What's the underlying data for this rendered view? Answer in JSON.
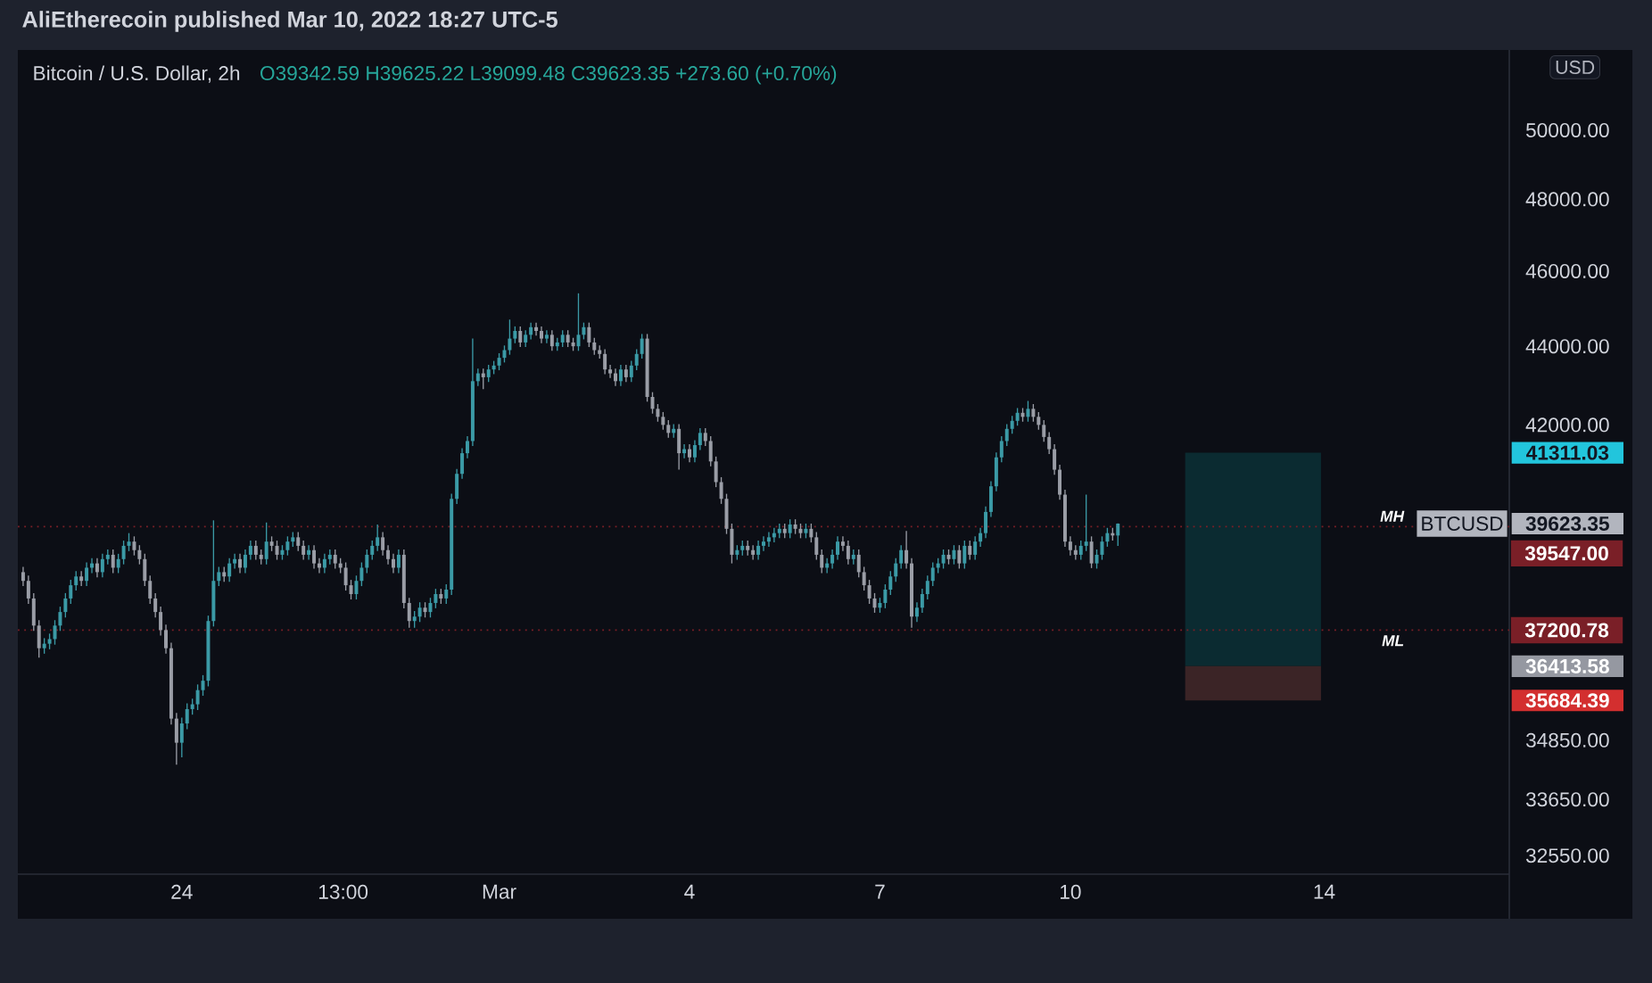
{
  "chart_data": {
    "type": "candlestick",
    "title": "Bitcoin / U.S. Dollar, 2h",
    "subtitle": "O39342.59 H39625.22 L39099.48 C39623.35 +273.60 (+0.70%)",
    "log": "y",
    "xlim": [
      "2022-02-21T10:00",
      "2022-03-16T22:00"
    ],
    "xticks": [
      {
        "value": "2022-02-24",
        "label": "24"
      },
      {
        "value": "2022-02-26T13:00",
        "label": "13:00"
      },
      {
        "value": "2022-03-01",
        "label": "Mar"
      },
      {
        "value": "2022-03-04",
        "label": "4"
      },
      {
        "value": "2022-03-07",
        "label": "7"
      },
      {
        "value": "2022-03-10",
        "label": "10"
      },
      {
        "value": "2022-03-14",
        "label": "14"
      }
    ],
    "ylim": [
      32200,
      52330
    ],
    "yticks": [
      {
        "value": 50000,
        "label": "50000.00"
      },
      {
        "value": 48000,
        "label": "48000.00"
      },
      {
        "value": 46000,
        "label": "46000.00"
      },
      {
        "value": 44000,
        "label": "44000.00"
      },
      {
        "value": 42000,
        "label": "42000.00"
      },
      41311.03,
      39623.35,
      36413.58,
      35684.39,
      {
        "value": 34850,
        "label": "34850.00"
      },
      {
        "value": 33650,
        "label": "33650.00"
      },
      {
        "value": 32550,
        "label": "32550.00"
      }
    ],
    "ref_lines": [
      {
        "axis": "y",
        "value": 39547,
        "label": "39547.00",
        "color": "#7a1f27",
        "line_style": "dotted"
      },
      {
        "axis": "y",
        "value": 37200.78,
        "label": "37200.78",
        "color": "#7a1f27",
        "line_style": "dotted"
      }
    ],
    "bands": [
      {
        "axis": "y",
        "from": 36413.58,
        "to": 41311.03,
        "color": "#0b2b31"
      },
      {
        "axis": "y",
        "from": 35684.39,
        "to": 36413.58,
        "color": "#3b2426"
      }
    ],
    "annotations": [
      "AliEtherecoin published Mar 10, 2022 18:27 UTC-5",
      "USD",
      "BTCUSD",
      "MH",
      "ML"
    ],
    "x": [
      "2022-02-21T12:00",
      "2022-02-21T14:00",
      "2022-02-21T16:00",
      "2022-02-21T18:00",
      "2022-02-21T20:00",
      "2022-02-21T22:00",
      "2022-02-22T00:00",
      "2022-02-22T02:00",
      "2022-02-22T04:00",
      "2022-02-22T06:00",
      "2022-02-22T08:00",
      "2022-02-22T10:00",
      "2022-02-22T12:00",
      "2022-02-22T14:00",
      "2022-02-22T16:00",
      "2022-02-22T18:00",
      "2022-02-22T20:00",
      "2022-02-22T22:00",
      "2022-02-23T00:00",
      "2022-02-23T02:00",
      "2022-02-23T04:00",
      "2022-02-23T06:00",
      "2022-02-23T08:00",
      "2022-02-23T10:00",
      "2022-02-23T12:00",
      "2022-02-23T14:00",
      "2022-02-23T16:00",
      "2022-02-23T18:00",
      "2022-02-23T20:00",
      "2022-02-23T22:00",
      "2022-02-24T00:00",
      "2022-02-24T02:00",
      "2022-02-24T04:00",
      "2022-02-24T06:00",
      "2022-02-24T08:00",
      "2022-02-24T10:00",
      "2022-02-24T12:00",
      "2022-02-24T14:00",
      "2022-02-24T16:00",
      "2022-02-24T18:00",
      "2022-02-24T20:00",
      "2022-02-24T22:00",
      "2022-02-25T00:00",
      "2022-02-25T02:00",
      "2022-02-25T04:00",
      "2022-02-25T06:00",
      "2022-02-25T08:00",
      "2022-02-25T10:00",
      "2022-02-25T12:00",
      "2022-02-25T14:00",
      "2022-02-25T16:00",
      "2022-02-25T18:00",
      "2022-02-25T20:00",
      "2022-02-25T22:00",
      "2022-02-26T00:00",
      "2022-02-26T02:00",
      "2022-02-26T04:00",
      "2022-02-26T06:00",
      "2022-02-26T08:00",
      "2022-02-26T10:00",
      "2022-02-26T12:00",
      "2022-02-26T14:00",
      "2022-02-26T16:00",
      "2022-02-26T18:00",
      "2022-02-26T20:00",
      "2022-02-26T22:00",
      "2022-02-27T00:00",
      "2022-02-27T02:00",
      "2022-02-27T04:00",
      "2022-02-27T06:00",
      "2022-02-27T08:00",
      "2022-02-27T10:00",
      "2022-02-27T12:00",
      "2022-02-27T14:00",
      "2022-02-27T16:00",
      "2022-02-27T18:00",
      "2022-02-27T20:00",
      "2022-02-27T22:00",
      "2022-02-28T00:00",
      "2022-02-28T02:00",
      "2022-02-28T04:00",
      "2022-02-28T06:00",
      "2022-02-28T08:00",
      "2022-02-28T10:00",
      "2022-02-28T12:00",
      "2022-02-28T14:00",
      "2022-02-28T16:00",
      "2022-02-28T18:00",
      "2022-02-28T20:00",
      "2022-02-28T22:00",
      "2022-03-01T00:00",
      "2022-03-01T02:00",
      "2022-03-01T04:00",
      "2022-03-01T06:00",
      "2022-03-01T08:00",
      "2022-03-01T10:00",
      "2022-03-01T12:00",
      "2022-03-01T14:00",
      "2022-03-01T16:00",
      "2022-03-01T18:00",
      "2022-03-01T20:00",
      "2022-03-01T22:00",
      "2022-03-02T00:00",
      "2022-03-02T02:00",
      "2022-03-02T04:00",
      "2022-03-02T06:00",
      "2022-03-02T08:00",
      "2022-03-02T10:00",
      "2022-03-02T12:00",
      "2022-03-02T14:00",
      "2022-03-02T16:00",
      "2022-03-02T18:00",
      "2022-03-02T20:00",
      "2022-03-02T22:00",
      "2022-03-03T00:00",
      "2022-03-03T02:00",
      "2022-03-03T04:00",
      "2022-03-03T06:00",
      "2022-03-03T08:00",
      "2022-03-03T10:00",
      "2022-03-03T12:00",
      "2022-03-03T14:00",
      "2022-03-03T16:00",
      "2022-03-03T18:00",
      "2022-03-03T20:00",
      "2022-03-03T22:00",
      "2022-03-04T00:00",
      "2022-03-04T02:00",
      "2022-03-04T04:00",
      "2022-03-04T06:00",
      "2022-03-04T08:00",
      "2022-03-04T10:00",
      "2022-03-04T12:00",
      "2022-03-04T14:00",
      "2022-03-04T16:00",
      "2022-03-04T18:00",
      "2022-03-04T20:00",
      "2022-03-04T22:00",
      "2022-03-05T00:00",
      "2022-03-05T02:00",
      "2022-03-05T04:00",
      "2022-03-05T06:00",
      "2022-03-05T08:00",
      "2022-03-05T10:00",
      "2022-03-05T12:00",
      "2022-03-05T14:00",
      "2022-03-05T16:00",
      "2022-03-05T18:00",
      "2022-03-05T20:00",
      "2022-03-05T22:00",
      "2022-03-06T00:00",
      "2022-03-06T02:00",
      "2022-03-06T04:00",
      "2022-03-06T06:00",
      "2022-03-06T08:00",
      "2022-03-06T10:00",
      "2022-03-06T12:00",
      "2022-03-06T14:00",
      "2022-03-06T16:00",
      "2022-03-06T18:00",
      "2022-03-06T20:00",
      "2022-03-06T22:00",
      "2022-03-07T00:00",
      "2022-03-07T02:00",
      "2022-03-07T04:00",
      "2022-03-07T06:00",
      "2022-03-07T08:00",
      "2022-03-07T10:00",
      "2022-03-07T12:00",
      "2022-03-07T14:00",
      "2022-03-07T16:00",
      "2022-03-07T18:00",
      "2022-03-07T20:00",
      "2022-03-07T22:00",
      "2022-03-08T00:00",
      "2022-03-08T02:00",
      "2022-03-08T04:00",
      "2022-03-08T06:00",
      "2022-03-08T08:00",
      "2022-03-08T10:00",
      "2022-03-08T12:00",
      "2022-03-08T14:00",
      "2022-03-08T16:00",
      "2022-03-08T18:00",
      "2022-03-08T20:00",
      "2022-03-08T22:00",
      "2022-03-09T00:00",
      "2022-03-09T02:00",
      "2022-03-09T04:00",
      "2022-03-09T06:00",
      "2022-03-09T08:00",
      "2022-03-09T10:00",
      "2022-03-09T12:00",
      "2022-03-09T14:00",
      "2022-03-09T16:00",
      "2022-03-09T18:00",
      "2022-03-09T20:00",
      "2022-03-09T22:00",
      "2022-03-10T00:00",
      "2022-03-10T02:00",
      "2022-03-10T04:00",
      "2022-03-10T06:00",
      "2022-03-10T08:00",
      "2022-03-10T10:00",
      "2022-03-10T12:00",
      "2022-03-10T14:00",
      "2022-03-10T16:00",
      "2022-03-10T18:00"
    ],
    "ohlc": [
      [
        38500,
        38620,
        38180,
        38300
      ],
      [
        38300,
        38420,
        37780,
        37900
      ],
      [
        37900,
        38020,
        37180,
        37300
      ],
      [
        37300,
        37420,
        36600,
        36800
      ],
      [
        36800,
        37020,
        36680,
        36900
      ],
      [
        36900,
        37120,
        36780,
        37000
      ],
      [
        37000,
        37420,
        36880,
        37300
      ],
      [
        37300,
        37720,
        37180,
        37600
      ],
      [
        37600,
        38020,
        37480,
        37900
      ],
      [
        37900,
        38320,
        37780,
        38200
      ],
      [
        38200,
        38520,
        38080,
        38400
      ],
      [
        38400,
        38520,
        38180,
        38300
      ],
      [
        38300,
        38720,
        38180,
        38600
      ],
      [
        38600,
        38820,
        38480,
        38700
      ],
      [
        38700,
        38820,
        38380,
        38500
      ],
      [
        38500,
        38920,
        38380,
        38800
      ],
      [
        38800,
        39020,
        38680,
        38900
      ],
      [
        38900,
        39020,
        38480,
        38600
      ],
      [
        38600,
        38920,
        38480,
        38800
      ],
      [
        38800,
        39220,
        38680,
        39100
      ],
      [
        39100,
        39400,
        38980,
        39200
      ],
      [
        39200,
        39320,
        38880,
        39000
      ],
      [
        39000,
        39120,
        38680,
        38800
      ],
      [
        38800,
        38920,
        38180,
        38300
      ],
      [
        38300,
        38420,
        37780,
        37900
      ],
      [
        37900,
        38020,
        37480,
        37600
      ],
      [
        37600,
        37720,
        37080,
        37200
      ],
      [
        37200,
        37320,
        36680,
        36800
      ],
      [
        36800,
        36920,
        35180,
        35300
      ],
      [
        35300,
        35420,
        34350,
        34800
      ],
      [
        34800,
        35320,
        34500,
        35200
      ],
      [
        35200,
        35620,
        35080,
        35500
      ],
      [
        35500,
        35720,
        35380,
        35600
      ],
      [
        35600,
        36020,
        35480,
        35900
      ],
      [
        35900,
        36220,
        35780,
        36100
      ],
      [
        36100,
        37520,
        35980,
        37400
      ],
      [
        37400,
        39700,
        37280,
        38300
      ],
      [
        38300,
        38620,
        38180,
        38500
      ],
      [
        38500,
        38620,
        38280,
        38400
      ],
      [
        38400,
        38820,
        38280,
        38700
      ],
      [
        38700,
        38920,
        38580,
        38800
      ],
      [
        38800,
        38920,
        38480,
        38600
      ],
      [
        38600,
        39020,
        38480,
        38900
      ],
      [
        38900,
        39220,
        38780,
        39100
      ],
      [
        39100,
        39220,
        38780,
        38900
      ],
      [
        38900,
        39020,
        38680,
        38800
      ],
      [
        38800,
        39650,
        38680,
        39200
      ],
      [
        39200,
        39320,
        38980,
        39100
      ],
      [
        39100,
        39220,
        38780,
        38900
      ],
      [
        38900,
        39120,
        38780,
        39000
      ],
      [
        39000,
        39320,
        38880,
        39200
      ],
      [
        39200,
        39420,
        39080,
        39300
      ],
      [
        39300,
        39420,
        38980,
        39100
      ],
      [
        39100,
        39220,
        38780,
        38900
      ],
      [
        38900,
        39120,
        38780,
        39000
      ],
      [
        39000,
        39120,
        38580,
        38700
      ],
      [
        38700,
        38820,
        38480,
        38600
      ],
      [
        38600,
        38920,
        38480,
        38800
      ],
      [
        38800,
        39020,
        38680,
        38900
      ],
      [
        38900,
        39020,
        38580,
        38700
      ],
      [
        38700,
        38820,
        38480,
        38600
      ],
      [
        38600,
        38720,
        38080,
        38200
      ],
      [
        38200,
        38320,
        37880,
        38000
      ],
      [
        38000,
        38420,
        37880,
        38300
      ],
      [
        38300,
        38720,
        38180,
        38600
      ],
      [
        38600,
        39020,
        38480,
        38900
      ],
      [
        38900,
        39220,
        38780,
        39100
      ],
      [
        39100,
        39600,
        38980,
        39300
      ],
      [
        39300,
        39420,
        38880,
        39000
      ],
      [
        39000,
        39120,
        38680,
        38800
      ],
      [
        38800,
        38920,
        38480,
        38600
      ],
      [
        38600,
        39020,
        38480,
        38900
      ],
      [
        38900,
        39020,
        37680,
        37800
      ],
      [
        37800,
        37920,
        37250,
        37400
      ],
      [
        37400,
        37620,
        37250,
        37500
      ],
      [
        37500,
        37820,
        37380,
        37700
      ],
      [
        37700,
        37820,
        37480,
        37600
      ],
      [
        37600,
        37920,
        37480,
        37800
      ],
      [
        37800,
        38120,
        37680,
        38000
      ],
      [
        38000,
        38120,
        37780,
        37900
      ],
      [
        37900,
        38220,
        37780,
        38100
      ],
      [
        38100,
        40320,
        37980,
        40200
      ],
      [
        40200,
        40920,
        40080,
        40800
      ],
      [
        40800,
        41420,
        40680,
        41300
      ],
      [
        41300,
        41720,
        41180,
        41600
      ],
      [
        41600,
        44200,
        41480,
        43100
      ],
      [
        43100,
        43420,
        42980,
        43300
      ],
      [
        43300,
        43420,
        42900,
        43200
      ],
      [
        43200,
        43520,
        43080,
        43400
      ],
      [
        43400,
        43620,
        43280,
        43500
      ],
      [
        43500,
        43820,
        43380,
        43700
      ],
      [
        43700,
        44020,
        43580,
        43900
      ],
      [
        43900,
        44700,
        43780,
        44200
      ],
      [
        44200,
        44520,
        44080,
        44400
      ],
      [
        44400,
        44520,
        43980,
        44100
      ],
      [
        44100,
        44420,
        43980,
        44300
      ],
      [
        44300,
        44620,
        44180,
        44500
      ],
      [
        44500,
        44620,
        44280,
        44400
      ],
      [
        44400,
        44520,
        44080,
        44200
      ],
      [
        44200,
        44420,
        44080,
        44300
      ],
      [
        44300,
        44420,
        43880,
        44000
      ],
      [
        44000,
        44220,
        43880,
        44100
      ],
      [
        44100,
        44420,
        43980,
        44300
      ],
      [
        44300,
        44420,
        43980,
        44100
      ],
      [
        44100,
        44220,
        43880,
        44000
      ],
      [
        44000,
        45400,
        43880,
        44300
      ],
      [
        44300,
        44620,
        44180,
        44500
      ],
      [
        44500,
        44620,
        43980,
        44100
      ],
      [
        44100,
        44220,
        43780,
        43900
      ],
      [
        43900,
        44020,
        43680,
        43800
      ],
      [
        43800,
        43920,
        43280,
        43400
      ],
      [
        43400,
        43520,
        43180,
        43300
      ],
      [
        43300,
        43420,
        42980,
        43100
      ],
      [
        43100,
        43520,
        42980,
        43400
      ],
      [
        43400,
        43520,
        43080,
        43200
      ],
      [
        43200,
        43620,
        43080,
        43500
      ],
      [
        43500,
        43920,
        43380,
        43800
      ],
      [
        43800,
        44320,
        43680,
        44200
      ],
      [
        44200,
        44320,
        42580,
        42700
      ],
      [
        42700,
        42820,
        42280,
        42400
      ],
      [
        42400,
        42520,
        42080,
        42200
      ],
      [
        42200,
        42320,
        41880,
        42000
      ],
      [
        42000,
        42120,
        41680,
        41800
      ],
      [
        41800,
        42020,
        41680,
        41900
      ],
      [
        41900,
        42020,
        40900,
        41300
      ],
      [
        41300,
        41520,
        41180,
        41400
      ],
      [
        41400,
        41520,
        41080,
        41200
      ],
      [
        41200,
        41620,
        41080,
        41500
      ],
      [
        41500,
        41920,
        41380,
        41800
      ],
      [
        41800,
        41920,
        41480,
        41600
      ],
      [
        41600,
        41720,
        40980,
        41100
      ],
      [
        41100,
        41220,
        40480,
        40600
      ],
      [
        40600,
        40720,
        40080,
        40200
      ],
      [
        40200,
        40320,
        39380,
        39500
      ],
      [
        39500,
        39620,
        38700,
        38900
      ],
      [
        38900,
        39120,
        38780,
        39000
      ],
      [
        39000,
        39220,
        38880,
        39100
      ],
      [
        39100,
        39220,
        38880,
        39000
      ],
      [
        39000,
        39120,
        38780,
        38900
      ],
      [
        38900,
        39220,
        38780,
        39100
      ],
      [
        39100,
        39320,
        38980,
        39200
      ],
      [
        39200,
        39420,
        39080,
        39300
      ],
      [
        39300,
        39520,
        39180,
        39400
      ],
      [
        39400,
        39620,
        39280,
        39500
      ],
      [
        39500,
        39620,
        39280,
        39400
      ],
      [
        39400,
        39720,
        39280,
        39600
      ],
      [
        39600,
        39720,
        39380,
        39500
      ],
      [
        39500,
        39620,
        39280,
        39400
      ],
      [
        39400,
        39620,
        39280,
        39500
      ],
      [
        39500,
        39620,
        39180,
        39300
      ],
      [
        39300,
        39420,
        38780,
        38900
      ],
      [
        38900,
        39020,
        38480,
        38600
      ],
      [
        38600,
        38820,
        38480,
        38700
      ],
      [
        38700,
        39020,
        38580,
        38900
      ],
      [
        38900,
        39320,
        38780,
        39200
      ],
      [
        39200,
        39320,
        38980,
        39100
      ],
      [
        39100,
        39220,
        38680,
        38800
      ],
      [
        38800,
        39020,
        38680,
        38900
      ],
      [
        38900,
        39020,
        38380,
        38500
      ],
      [
        38500,
        38620,
        38080,
        38200
      ],
      [
        38200,
        38320,
        37780,
        37900
      ],
      [
        37900,
        38020,
        37580,
        37700
      ],
      [
        37700,
        37920,
        37580,
        37800
      ],
      [
        37800,
        38220,
        37680,
        38100
      ],
      [
        38100,
        38520,
        37980,
        38400
      ],
      [
        38400,
        38820,
        38280,
        38700
      ],
      [
        38700,
        39120,
        38580,
        39000
      ],
      [
        39000,
        39450,
        38580,
        38700
      ],
      [
        38700,
        38820,
        37250,
        37500
      ],
      [
        37500,
        37820,
        37380,
        37700
      ],
      [
        37700,
        38120,
        37580,
        38000
      ],
      [
        38000,
        38420,
        37880,
        38300
      ],
      [
        38300,
        38720,
        38180,
        38600
      ],
      [
        38600,
        38820,
        38480,
        38700
      ],
      [
        38700,
        39020,
        38580,
        38900
      ],
      [
        38900,
        39020,
        38680,
        38800
      ],
      [
        38800,
        39120,
        38680,
        39000
      ],
      [
        39000,
        39120,
        38580,
        38700
      ],
      [
        38700,
        39220,
        38580,
        39100
      ],
      [
        39100,
        39220,
        38780,
        38900
      ],
      [
        38900,
        39320,
        38780,
        39200
      ],
      [
        39200,
        39520,
        39080,
        39400
      ],
      [
        39400,
        40020,
        39280,
        39900
      ],
      [
        39900,
        40620,
        39780,
        40500
      ],
      [
        40500,
        41320,
        40380,
        41200
      ],
      [
        41200,
        41720,
        41080,
        41600
      ],
      [
        41600,
        42020,
        41480,
        41900
      ],
      [
        41900,
        42220,
        41780,
        42100
      ],
      [
        42100,
        42420,
        41980,
        42300
      ],
      [
        42300,
        42420,
        42080,
        42200
      ],
      [
        42200,
        42600,
        42080,
        42400
      ],
      [
        42400,
        42520,
        42080,
        42200
      ],
      [
        42200,
        42320,
        41880,
        42000
      ],
      [
        42000,
        42120,
        41580,
        41700
      ],
      [
        41700,
        41820,
        41280,
        41400
      ],
      [
        41400,
        41520,
        40780,
        40900
      ],
      [
        40900,
        41020,
        40180,
        40300
      ],
      [
        40300,
        40420,
        39080,
        39200
      ],
      [
        39200,
        39320,
        38880,
        39000
      ],
      [
        39000,
        39120,
        38780,
        38900
      ],
      [
        38900,
        39220,
        38780,
        39100
      ],
      [
        39100,
        40300,
        38980,
        39200
      ],
      [
        39200,
        39320,
        38590,
        38700
      ],
      [
        38700,
        39020,
        38580,
        38900
      ],
      [
        38900,
        39320,
        38780,
        39200
      ],
      [
        39200,
        39520,
        39080,
        39400
      ],
      [
        39400,
        39520,
        39220,
        39342.59
      ],
      [
        39342.59,
        39625.22,
        39099.48,
        39623.35
      ]
    ]
  }
}
